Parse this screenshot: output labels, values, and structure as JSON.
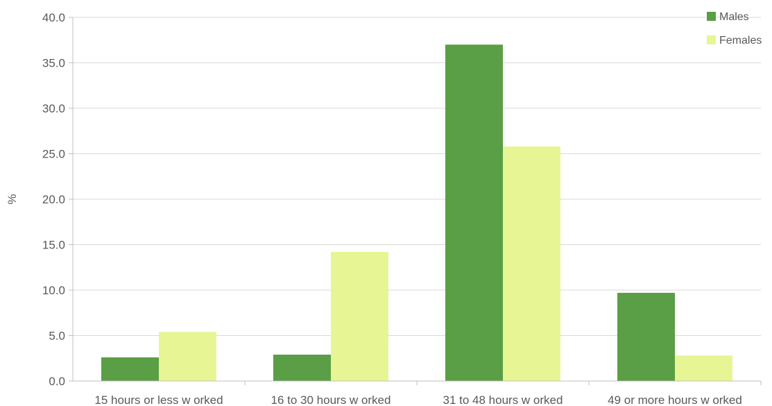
{
  "chart_data": {
    "type": "bar",
    "title": "",
    "xlabel": "",
    "ylabel": "%",
    "ylim": [
      0,
      40
    ],
    "yticks": [
      0,
      5,
      10,
      15,
      20,
      25,
      30,
      35,
      40
    ],
    "ytick_labels": [
      "0.0",
      "5.0",
      "10.0",
      "15.0",
      "20.0",
      "25.0",
      "30.0",
      "35.0",
      "40.0"
    ],
    "categories": [
      "15 hours or less w orked",
      "16 to 30 hours w orked",
      "31 to 48 hours w orked",
      "49 or more hours w orked"
    ],
    "series": [
      {
        "name": "Males",
        "color": "#5a9e45",
        "values": [
          2.6,
          2.9,
          37.0,
          9.7
        ]
      },
      {
        "name": "Females",
        "color": "#e8f594",
        "values": [
          5.4,
          14.2,
          25.8,
          2.8
        ]
      }
    ],
    "grid": true,
    "legend_position": "top-right"
  }
}
